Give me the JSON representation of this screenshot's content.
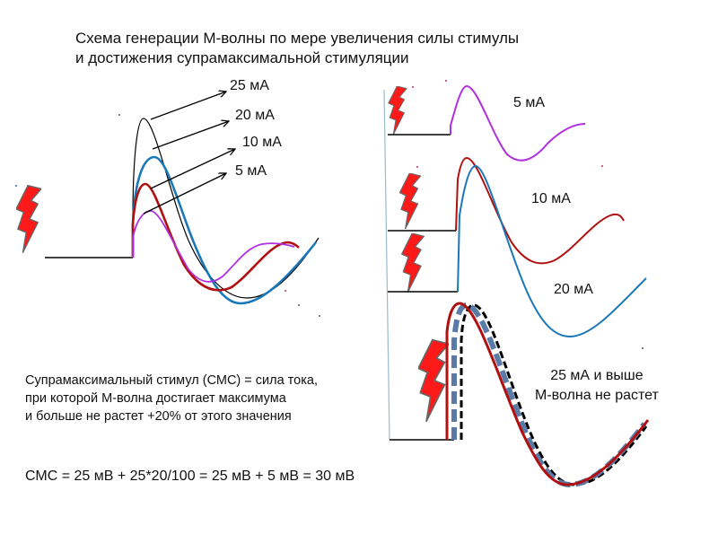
{
  "title": {
    "line1": "Схема генерации М-волны по мере увеличения силы стимулы",
    "line2": "и достижения супрамаксимальной стимуляции"
  },
  "left_labels": [
    "25 мА",
    "20 мА",
    "10 мА",
    "5 мА"
  ],
  "right_labels": [
    "5 мА",
    "10 мА",
    "20 мА"
  ],
  "right_note": {
    "line1": "25 мА и выше",
    "line2": "М-волна не растет"
  },
  "description": {
    "line1": "Супрамаксимальный стимул (СМС) = сила тока,",
    "line2": "при которой М-волна достигает максимума",
    "line3": "и больше не растет +20% от этого значения"
  },
  "formula": "СМС = 25 мВ + 25*20/100 =  25 мВ + 5 мВ = 30 мВ",
  "colors": {
    "violet": "#b030e0",
    "dark_red": "#b01010",
    "blue": "#1a78b8",
    "black": "#000000",
    "dashed_blue": "#5a7aa8",
    "bolt": "#ff1a1a"
  },
  "icons": [
    "lightning-bolt-icon"
  ]
}
